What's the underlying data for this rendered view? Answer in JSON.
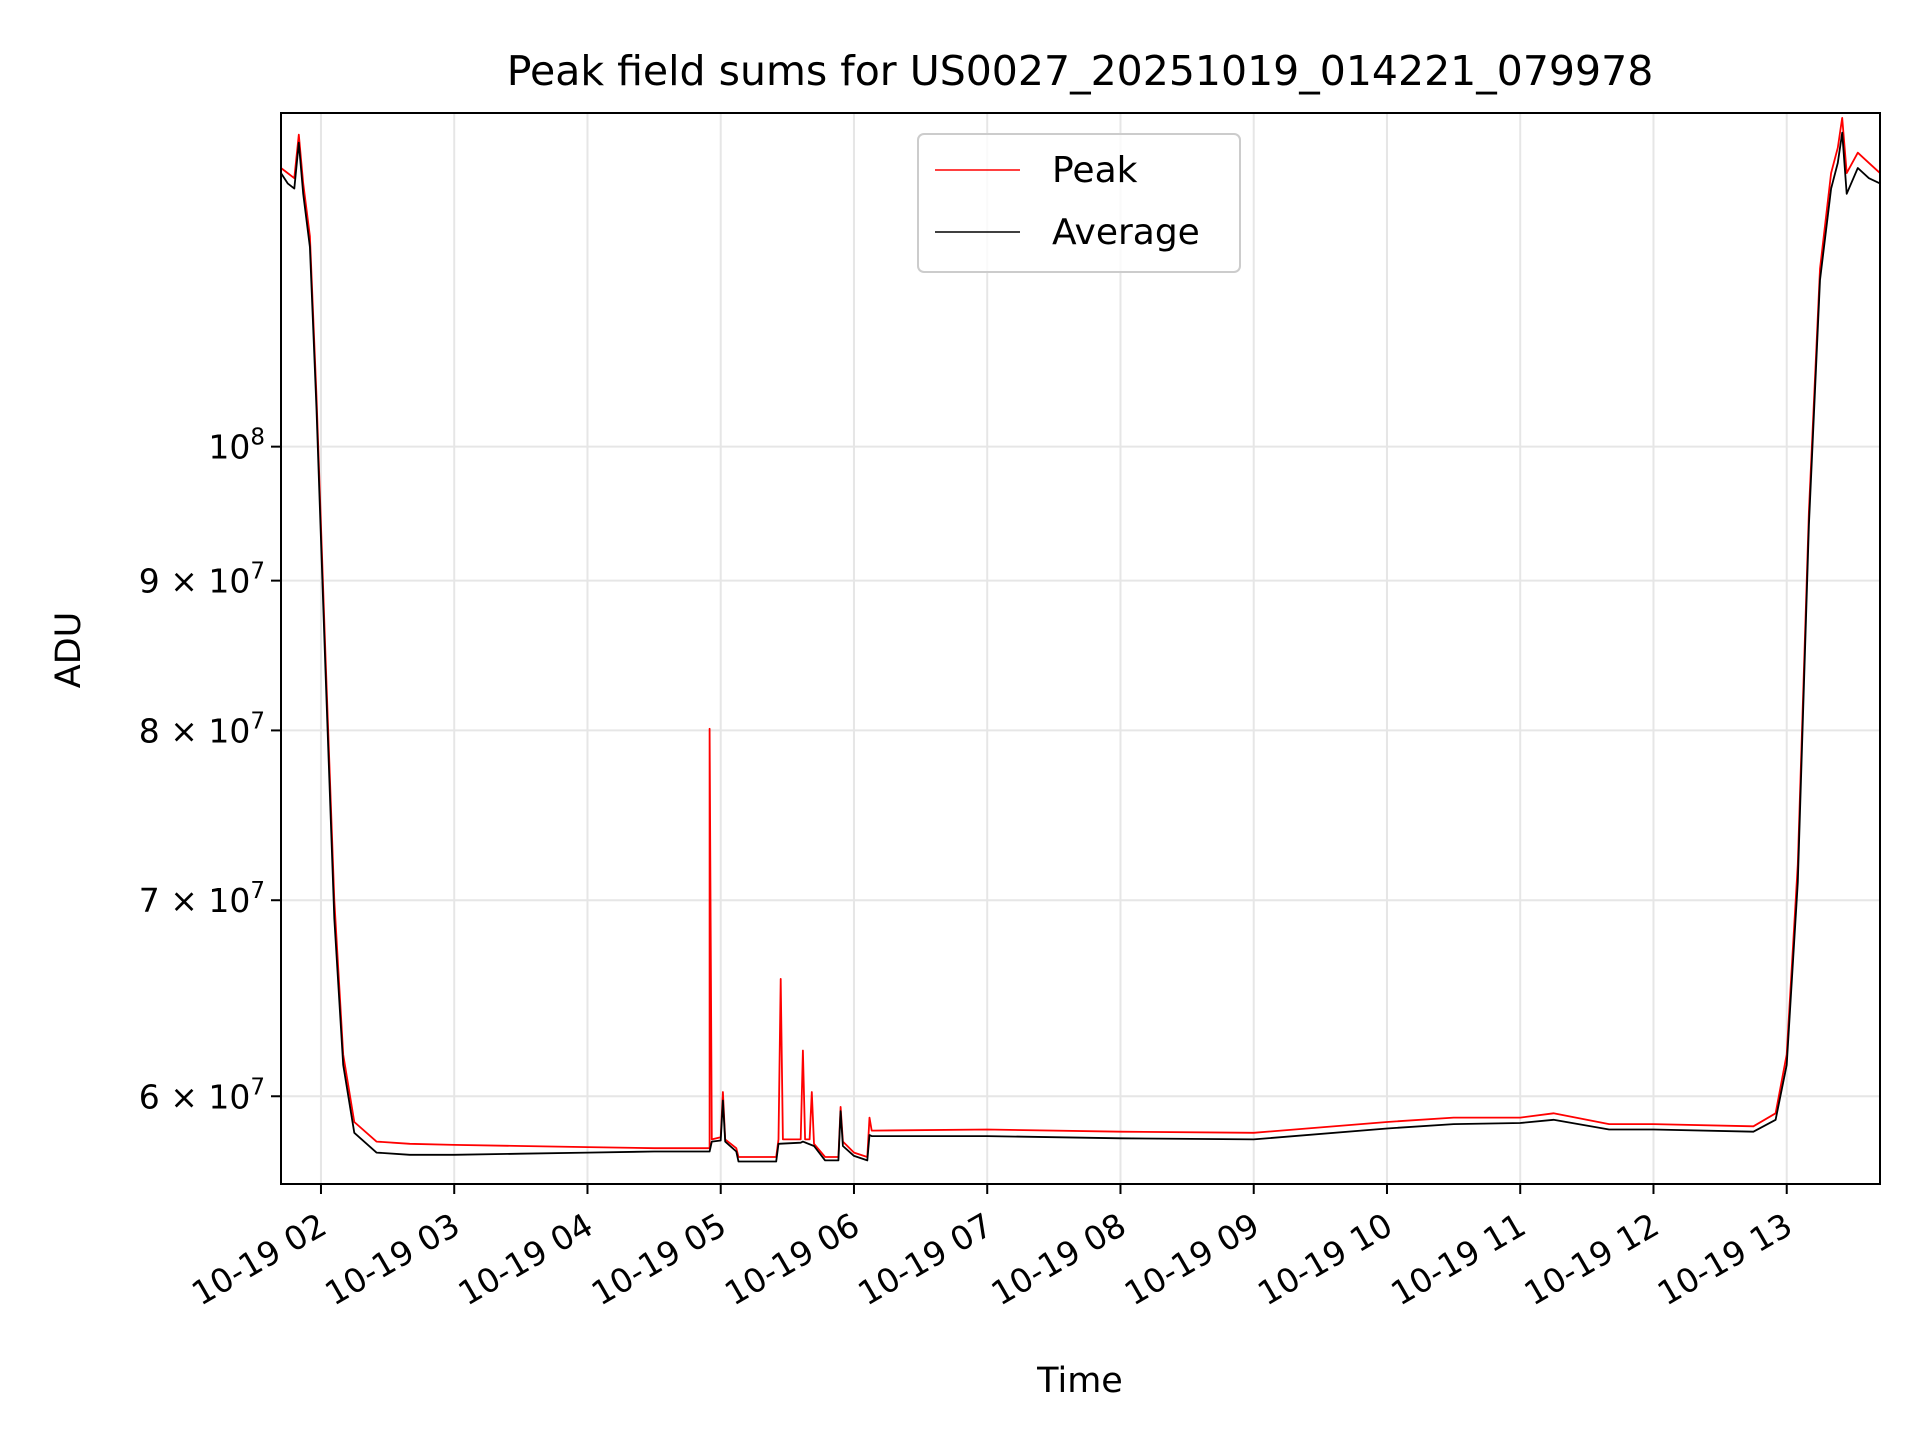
{
  "chart_data": {
    "type": "line",
    "title": "Peak field sums for US0027_20251019_014221_079978",
    "xlabel": "Time",
    "ylabel": "ADU",
    "yscale": "log",
    "xlim": [
      "2025-10-19T01:42:00",
      "2025-10-19T13:42:00"
    ],
    "ylim": [
      56000000,
      130000000
    ],
    "grid": true,
    "legend_position": "upper center",
    "x_ticks": [
      {
        "t": "2025-10-19T02:00",
        "label": "10-19 02"
      },
      {
        "t": "2025-10-19T03:00",
        "label": "10-19 03"
      },
      {
        "t": "2025-10-19T04:00",
        "label": "10-19 04"
      },
      {
        "t": "2025-10-19T05:00",
        "label": "10-19 05"
      },
      {
        "t": "2025-10-19T06:00",
        "label": "10-19 06"
      },
      {
        "t": "2025-10-19T07:00",
        "label": "10-19 07"
      },
      {
        "t": "2025-10-19T08:00",
        "label": "10-19 08"
      },
      {
        "t": "2025-10-19T09:00",
        "label": "10-19 09"
      },
      {
        "t": "2025-10-19T10:00",
        "label": "10-19 10"
      },
      {
        "t": "2025-10-19T11:00",
        "label": "10-19 11"
      },
      {
        "t": "2025-10-19T12:00",
        "label": "10-19 12"
      },
      {
        "t": "2025-10-19T13:00",
        "label": "10-19 13"
      }
    ],
    "y_ticks": [
      {
        "value": 60000000,
        "mantissa": "6 × 10",
        "exp": "7"
      },
      {
        "value": 70000000,
        "mantissa": "7 × 10",
        "exp": "7"
      },
      {
        "value": 80000000,
        "mantissa": "8 × 10",
        "exp": "7"
      },
      {
        "value": 90000000,
        "mantissa": "9 × 10",
        "exp": "7"
      },
      {
        "value": 100000000,
        "mantissa": "10",
        "exp": "8"
      }
    ],
    "series": [
      {
        "name": "Peak",
        "color": "#ff0000",
        "points": [
          [
            "2025-10-19T01:42",
            124500000
          ],
          [
            "2025-10-19T01:45",
            124000000
          ],
          [
            "2025-10-19T01:48",
            123500000
          ],
          [
            "2025-10-19T01:50",
            127800000
          ],
          [
            "2025-10-19T01:52",
            123000000
          ],
          [
            "2025-10-19T01:55",
            118000000
          ],
          [
            "2025-10-19T01:58",
            104000000
          ],
          [
            "2025-10-19T02:02",
            85000000
          ],
          [
            "2025-10-19T02:06",
            70000000
          ],
          [
            "2025-10-19T02:10",
            62000000
          ],
          [
            "2025-10-19T02:15",
            58800000
          ],
          [
            "2025-10-19T02:25",
            57900000
          ],
          [
            "2025-10-19T02:40",
            57800000
          ],
          [
            "2025-10-19T03:00",
            57750000
          ],
          [
            "2025-10-19T03:30",
            57700000
          ],
          [
            "2025-10-19T04:00",
            57650000
          ],
          [
            "2025-10-19T04:30",
            57600000
          ],
          [
            "2025-10-19T04:55",
            57600000
          ],
          [
            "2025-10-19T04:55",
            80100000
          ],
          [
            "2025-10-19T04:56",
            58000000
          ],
          [
            "2025-10-19T05:00",
            58100000
          ],
          [
            "2025-10-19T05:01",
            60200000
          ],
          [
            "2025-10-19T05:02",
            58000000
          ],
          [
            "2025-10-19T05:07",
            57600000
          ],
          [
            "2025-10-19T05:08",
            57200000
          ],
          [
            "2025-10-19T05:25",
            57200000
          ],
          [
            "2025-10-19T05:26",
            58000000
          ],
          [
            "2025-10-19T05:27",
            65800000
          ],
          [
            "2025-10-19T05:28",
            58000000
          ],
          [
            "2025-10-19T05:36",
            58000000
          ],
          [
            "2025-10-19T05:37",
            62200000
          ],
          [
            "2025-10-19T05:38",
            58000000
          ],
          [
            "2025-10-19T05:40",
            58000000
          ],
          [
            "2025-10-19T05:41",
            60200000
          ],
          [
            "2025-10-19T05:42",
            57800000
          ],
          [
            "2025-10-19T05:47",
            57200000
          ],
          [
            "2025-10-19T05:53",
            57200000
          ],
          [
            "2025-10-19T05:54",
            59500000
          ],
          [
            "2025-10-19T05:55",
            57900000
          ],
          [
            "2025-10-19T06:00",
            57400000
          ],
          [
            "2025-10-19T06:06",
            57200000
          ],
          [
            "2025-10-19T06:07",
            59000000
          ],
          [
            "2025-10-19T06:08",
            58400000
          ],
          [
            "2025-10-19T07:00",
            58450000
          ],
          [
            "2025-10-19T08:00",
            58350000
          ],
          [
            "2025-10-19T09:00",
            58300000
          ],
          [
            "2025-10-19T10:00",
            58800000
          ],
          [
            "2025-10-19T10:30",
            59000000
          ],
          [
            "2025-10-19T11:00",
            59000000
          ],
          [
            "2025-10-19T11:15",
            59200000
          ],
          [
            "2025-10-19T11:40",
            58700000
          ],
          [
            "2025-10-19T12:00",
            58700000
          ],
          [
            "2025-10-19T12:45",
            58600000
          ],
          [
            "2025-10-19T12:55",
            59200000
          ],
          [
            "2025-10-19T13:00",
            62000000
          ],
          [
            "2025-10-19T13:05",
            72000000
          ],
          [
            "2025-10-19T13:10",
            95000000
          ],
          [
            "2025-10-19T13:15",
            115000000
          ],
          [
            "2025-10-19T13:20",
            124000000
          ],
          [
            "2025-10-19T13:23",
            126500000
          ],
          [
            "2025-10-19T13:25",
            129500000
          ],
          [
            "2025-10-19T13:27",
            124000000
          ],
          [
            "2025-10-19T13:32",
            126000000
          ],
          [
            "2025-10-19T13:37",
            125000000
          ],
          [
            "2025-10-19T13:42",
            124000000
          ]
        ]
      },
      {
        "name": "Average",
        "color": "#000000",
        "points": [
          [
            "2025-10-19T01:42",
            124000000
          ],
          [
            "2025-10-19T01:45",
            123000000
          ],
          [
            "2025-10-19T01:48",
            122500000
          ],
          [
            "2025-10-19T01:50",
            127000000
          ],
          [
            "2025-10-19T01:52",
            122000000
          ],
          [
            "2025-10-19T01:55",
            117000000
          ],
          [
            "2025-10-19T01:58",
            103000000
          ],
          [
            "2025-10-19T02:02",
            84000000
          ],
          [
            "2025-10-19T02:06",
            69000000
          ],
          [
            "2025-10-19T02:10",
            61500000
          ],
          [
            "2025-10-19T02:15",
            58300000
          ],
          [
            "2025-10-19T02:25",
            57400000
          ],
          [
            "2025-10-19T02:40",
            57300000
          ],
          [
            "2025-10-19T03:00",
            57300000
          ],
          [
            "2025-10-19T03:30",
            57350000
          ],
          [
            "2025-10-19T04:00",
            57400000
          ],
          [
            "2025-10-19T04:30",
            57450000
          ],
          [
            "2025-10-19T04:55",
            57450000
          ],
          [
            "2025-10-19T04:56",
            57900000
          ],
          [
            "2025-10-19T05:00",
            57950000
          ],
          [
            "2025-10-19T05:01",
            59800000
          ],
          [
            "2025-10-19T05:02",
            57900000
          ],
          [
            "2025-10-19T05:07",
            57450000
          ],
          [
            "2025-10-19T05:08",
            57000000
          ],
          [
            "2025-10-19T05:25",
            57000000
          ],
          [
            "2025-10-19T05:26",
            57800000
          ],
          [
            "2025-10-19T05:36",
            57850000
          ],
          [
            "2025-10-19T05:37",
            57900000
          ],
          [
            "2025-10-19T05:42",
            57700000
          ],
          [
            "2025-10-19T05:47",
            57050000
          ],
          [
            "2025-10-19T05:53",
            57050000
          ],
          [
            "2025-10-19T05:54",
            59300000
          ],
          [
            "2025-10-19T05:55",
            57700000
          ],
          [
            "2025-10-19T06:00",
            57250000
          ],
          [
            "2025-10-19T06:06",
            57050000
          ],
          [
            "2025-10-19T06:07",
            58200000
          ],
          [
            "2025-10-19T06:08",
            58150000
          ],
          [
            "2025-10-19T07:00",
            58150000
          ],
          [
            "2025-10-19T08:00",
            58050000
          ],
          [
            "2025-10-19T09:00",
            58000000
          ],
          [
            "2025-10-19T10:00",
            58500000
          ],
          [
            "2025-10-19T10:30",
            58700000
          ],
          [
            "2025-10-19T11:00",
            58750000
          ],
          [
            "2025-10-19T11:15",
            58900000
          ],
          [
            "2025-10-19T11:40",
            58450000
          ],
          [
            "2025-10-19T12:00",
            58450000
          ],
          [
            "2025-10-19T12:45",
            58350000
          ],
          [
            "2025-10-19T12:55",
            58900000
          ],
          [
            "2025-10-19T13:00",
            61500000
          ],
          [
            "2025-10-19T13:05",
            71000000
          ],
          [
            "2025-10-19T13:10",
            94000000
          ],
          [
            "2025-10-19T13:15",
            114000000
          ],
          [
            "2025-10-19T13:20",
            122500000
          ],
          [
            "2025-10-19T13:23",
            125000000
          ],
          [
            "2025-10-19T13:25",
            128000000
          ],
          [
            "2025-10-19T13:27",
            122000000
          ],
          [
            "2025-10-19T13:32",
            124500000
          ],
          [
            "2025-10-19T13:37",
            123500000
          ],
          [
            "2025-10-19T13:42",
            123000000
          ]
        ]
      }
    ]
  }
}
